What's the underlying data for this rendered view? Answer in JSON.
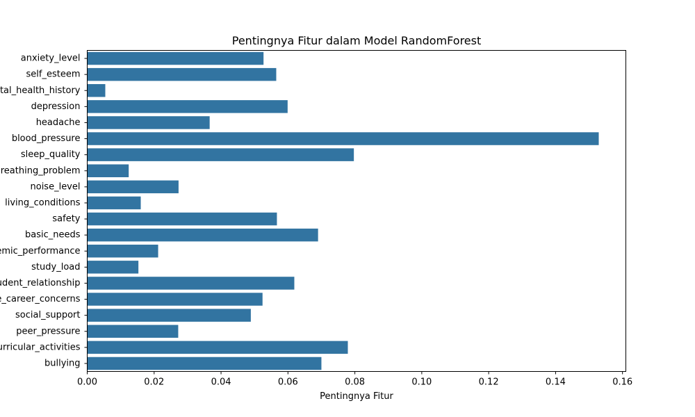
{
  "chart_data": {
    "type": "bar",
    "orientation": "horizontal",
    "title": "Pentingnya Fitur dalam Model RandomForest",
    "xlabel": "Pentingnya Fitur",
    "ylabel": "",
    "xlim": [
      0,
      0.161
    ],
    "xticks": [
      "0.00",
      "0.02",
      "0.04",
      "0.06",
      "0.08",
      "0.10",
      "0.12",
      "0.14",
      "0.16"
    ],
    "categories": [
      "anxiety_level",
      "self_esteem",
      "mental_health_history",
      "depression",
      "headache",
      "blood_pressure",
      "sleep_quality",
      "breathing_problem",
      "noise_level",
      "living_conditions",
      "safety",
      "basic_needs",
      "academic_performance",
      "study_load",
      "teacher_student_relationship",
      "future_career_concerns",
      "social_support",
      "peer_pressure",
      "extracurricular_activities",
      "bullying"
    ],
    "values": [
      0.0527,
      0.0565,
      0.0054,
      0.0599,
      0.0366,
      0.1529,
      0.0797,
      0.0124,
      0.0273,
      0.016,
      0.0567,
      0.069,
      0.0212,
      0.0153,
      0.0619,
      0.0524,
      0.0489,
      0.0272,
      0.0779,
      0.07
    ],
    "bar_color": "#3274a1",
    "grid": false,
    "legend": "none"
  }
}
